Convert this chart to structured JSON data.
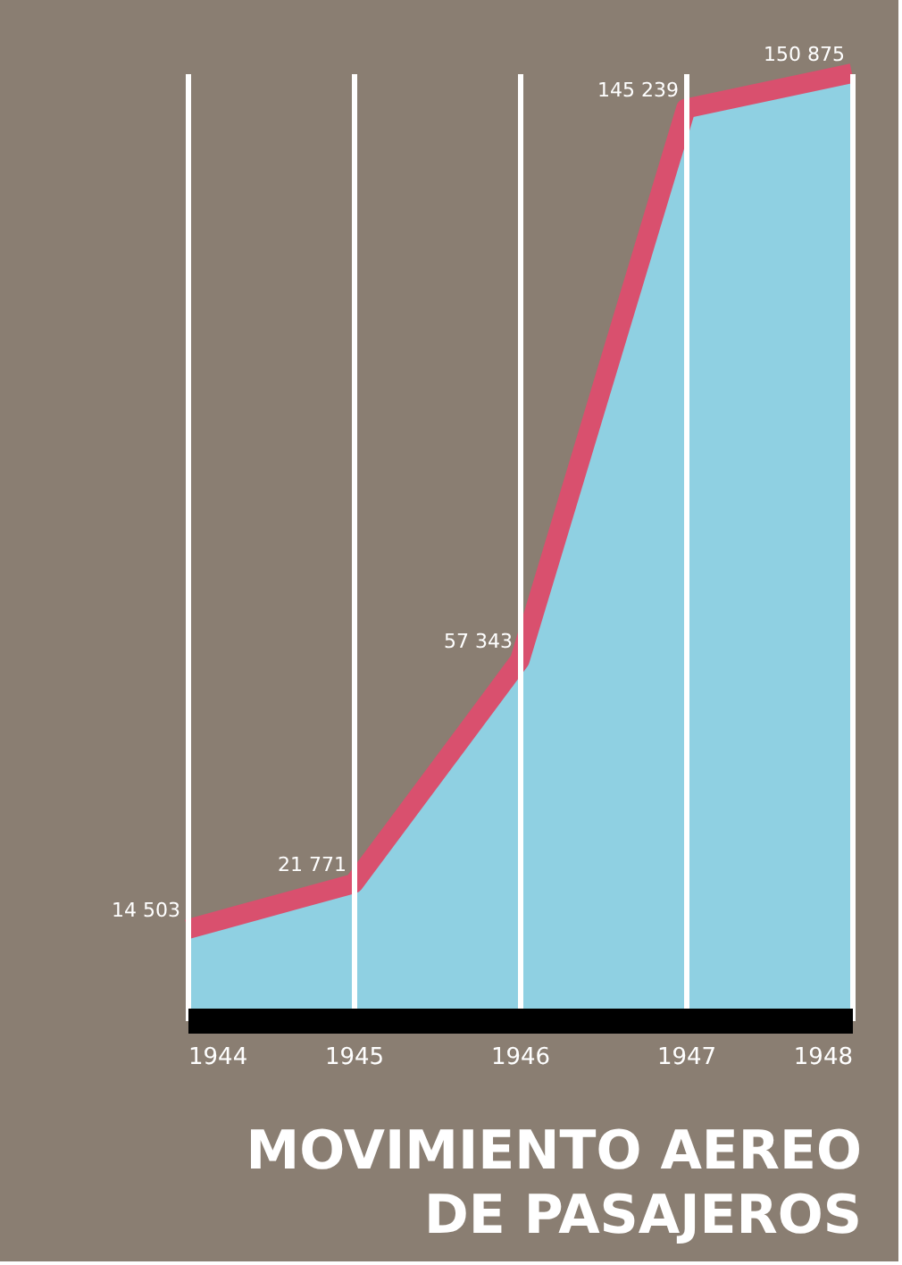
{
  "chart_data": {
    "type": "area",
    "title": "MOVIMIENTO AEREO\nDE PASAJEROS",
    "x": [
      1944,
      1945,
      1946,
      1947,
      1948
    ],
    "xlim": [
      1944,
      1948
    ],
    "xticks": [
      1944,
      1945,
      1946,
      1947,
      1948
    ],
    "series": [
      {
        "color": "#8fd0e2",
        "values": [
          14503,
          21771,
          57343,
          145239,
          150875
        ]
      },
      {
        "type": "line",
        "color": "#d9506e",
        "values": [
          14503,
          21771,
          57343,
          145239,
          150875
        ],
        "value_labels": [
          "14 503",
          "21 771",
          "57 343",
          "145 239",
          "150 875"
        ]
      }
    ],
    "tick_labels": "x",
    "grid": "x"
  }
}
